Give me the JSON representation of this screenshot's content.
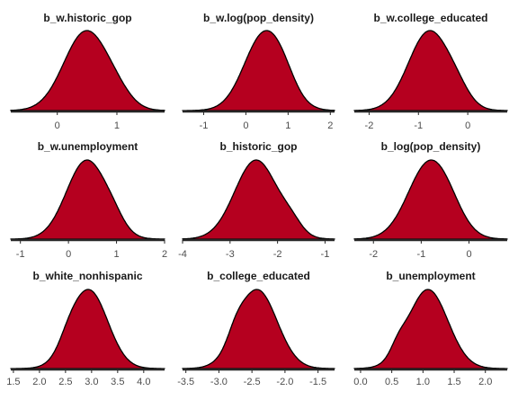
{
  "chart_data": [
    {
      "type": "area",
      "title": "b_w.historic_gop",
      "xlim": [
        -0.78,
        1.8
      ],
      "ticks": [
        0,
        1
      ],
      "tick_labels": [
        "0",
        "1"
      ],
      "mean": 0.48,
      "sd": 0.37,
      "bumps": [
        {
          "mu": 1.0,
          "s": 0.25,
          "a": 0.12
        }
      ]
    },
    {
      "type": "area",
      "title": "b_w.log(pop_density)",
      "xlim": [
        -1.5,
        2.1
      ],
      "ticks": [
        -1,
        0,
        1,
        2
      ],
      "tick_labels": [
        "-1",
        "0",
        "1",
        "2"
      ],
      "mean": 0.45,
      "sd": 0.48,
      "bumps": [
        {
          "mu": 0.9,
          "s": 0.28,
          "a": 0.1
        }
      ]
    },
    {
      "type": "area",
      "title": "b_w.college_educated",
      "xlim": [
        -2.3,
        0.8
      ],
      "ticks": [
        -2,
        -1,
        0
      ],
      "tick_labels": [
        "-2",
        "-1",
        "0"
      ],
      "mean": -0.78,
      "sd": 0.42,
      "bumps": [
        {
          "mu": -0.2,
          "s": 0.25,
          "a": 0.12
        }
      ]
    },
    {
      "type": "area",
      "title": "b_w.unemployment",
      "xlim": [
        -1.2,
        2.0
      ],
      "ticks": [
        -1,
        0,
        1,
        2
      ],
      "tick_labels": [
        "-1",
        "0",
        "1",
        "2"
      ],
      "mean": 0.38,
      "sd": 0.42,
      "bumps": [
        {
          "mu": 0.95,
          "s": 0.22,
          "a": 0.1
        }
      ]
    },
    {
      "type": "area",
      "title": "b_historic_gop",
      "xlim": [
        -4.0,
        -0.8
      ],
      "ticks": [
        -4,
        -3,
        -2,
        -1
      ],
      "tick_labels": [
        "-4",
        "-3",
        "-2",
        "-1"
      ],
      "mean": -2.45,
      "sd": 0.45,
      "bumps": [
        {
          "mu": -1.7,
          "s": 0.22,
          "a": 0.12
        }
      ]
    },
    {
      "type": "area",
      "title": "b_log(pop_density)",
      "xlim": [
        -2.4,
        0.8
      ],
      "ticks": [
        -2,
        -1,
        0
      ],
      "tick_labels": [
        "-2",
        "-1",
        "0"
      ],
      "mean": -0.82,
      "sd": 0.45,
      "bumps": [
        {
          "mu": -0.4,
          "s": 0.3,
          "a": 0.08
        }
      ]
    },
    {
      "type": "area",
      "title": "b_white_nonhispanic",
      "xlim": [
        1.45,
        4.4
      ],
      "ticks": [
        1.5,
        2.0,
        2.5,
        3.0,
        3.5,
        4.0
      ],
      "tick_labels": [
        "1.5",
        "2.0",
        "2.5",
        "3.0",
        "3.5",
        "4.0"
      ],
      "mean": 2.95,
      "sd": 0.36,
      "bumps": [
        {
          "mu": 2.55,
          "s": 0.18,
          "a": 0.1
        }
      ]
    },
    {
      "type": "area",
      "title": "b_college_educated",
      "xlim": [
        -3.55,
        -1.25
      ],
      "ticks": [
        -3.5,
        -3.0,
        -2.5,
        -2.0,
        -1.5
      ],
      "tick_labels": [
        "-3.5",
        "-3.0",
        "-2.5",
        "-2.0",
        "-1.5"
      ],
      "mean": -2.42,
      "sd": 0.3,
      "bumps": [
        {
          "mu": -2.75,
          "s": 0.12,
          "a": 0.12
        }
      ]
    },
    {
      "type": "area",
      "title": "b_unemployment",
      "xlim": [
        -0.1,
        2.35
      ],
      "ticks": [
        0.0,
        0.5,
        1.0,
        1.5,
        2.0
      ],
      "tick_labels": [
        "0.0",
        "0.5",
        "1.0",
        "1.5",
        "2.0"
      ],
      "mean": 1.08,
      "sd": 0.32,
      "bumps": [
        {
          "mu": 0.6,
          "s": 0.12,
          "a": 0.12
        }
      ]
    }
  ],
  "colors": {
    "fill": "#b5001f",
    "line": "#000000",
    "axis": "#262626",
    "text": "#1a1a1a"
  }
}
